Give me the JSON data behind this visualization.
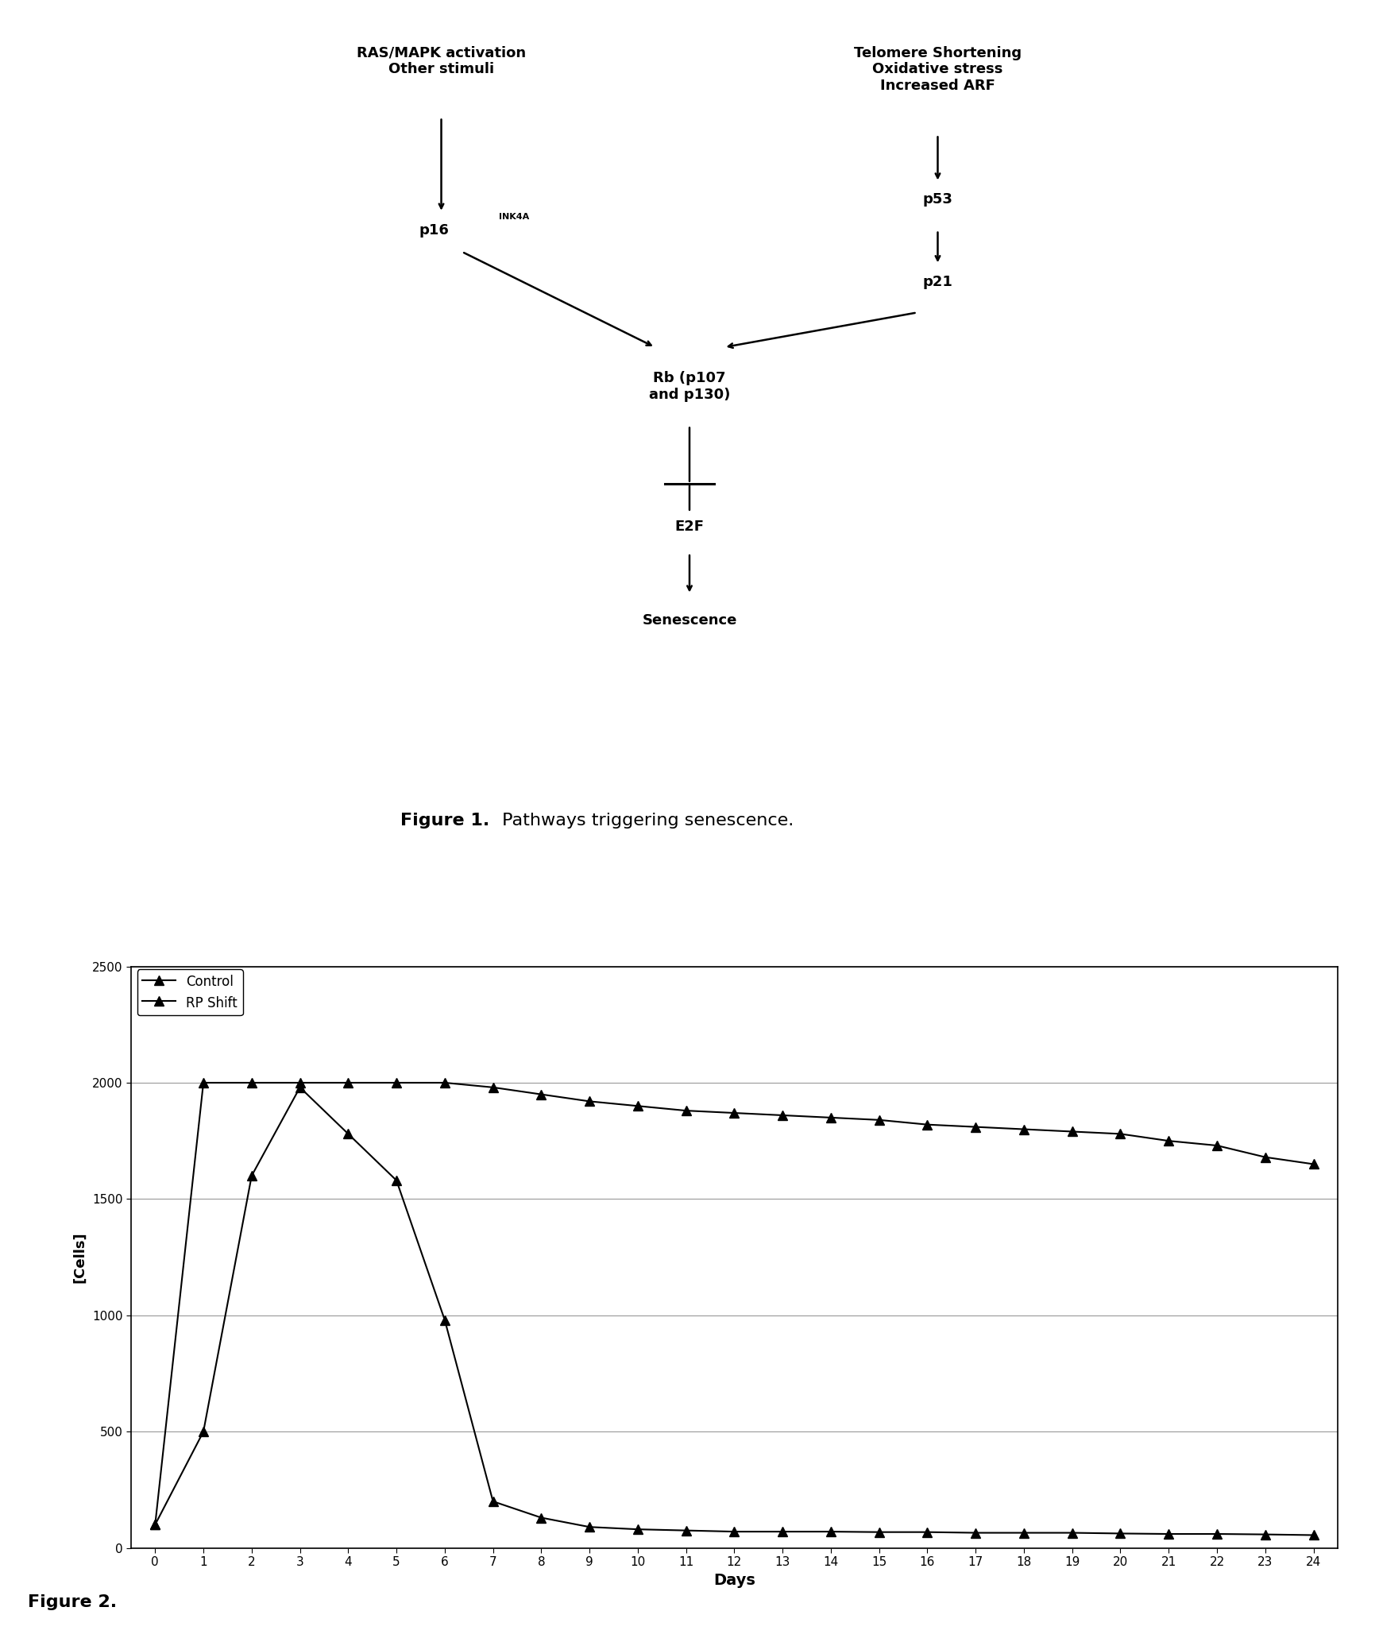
{
  "figure1_caption_bold": "Figure 1.",
  "figure1_caption_rest": " Pathways triggering senescence.",
  "figure2_caption": "Figure 2.",
  "diagram": {
    "left_top_text": "RAS/MAPK activation\nOther stimuli",
    "right_top_text": "Telomere Shortening\nOxidative stress\nIncreased ARF",
    "p53_text": "p53",
    "p21_text": "p21",
    "p16_text": "p16",
    "p16_superscript": "INK4A",
    "rb_text": "Rb (p107\nand p130)",
    "e2f_text": "E2F",
    "senescence_text": "Senescence"
  },
  "chart": {
    "control_x": [
      0,
      1,
      2,
      3,
      4,
      5,
      6,
      7,
      8,
      9,
      10,
      11,
      12,
      13,
      14,
      15,
      16,
      17,
      18,
      19,
      20,
      21,
      22,
      23,
      24
    ],
    "control_y": [
      100,
      2000,
      2000,
      2000,
      2000,
      2000,
      2000,
      1980,
      1950,
      1920,
      1900,
      1880,
      1870,
      1860,
      1850,
      1840,
      1820,
      1810,
      1800,
      1790,
      1780,
      1750,
      1730,
      1680,
      1650
    ],
    "rp_x": [
      0,
      1,
      2,
      3,
      4,
      5,
      6,
      7,
      8,
      9,
      10,
      11,
      12,
      13,
      14,
      15,
      16,
      17,
      18,
      19,
      20,
      21,
      22,
      23,
      24
    ],
    "rp_y": [
      100,
      500,
      1600,
      1980,
      1780,
      1580,
      980,
      200,
      130,
      90,
      80,
      75,
      70,
      70,
      70,
      68,
      68,
      65,
      65,
      65,
      62,
      60,
      60,
      58,
      55
    ],
    "ylim": [
      0,
      2500
    ],
    "yticks": [
      0,
      500,
      1000,
      1500,
      2000,
      2500
    ],
    "xticks": [
      0,
      1,
      2,
      3,
      4,
      5,
      6,
      7,
      8,
      9,
      10,
      11,
      12,
      13,
      14,
      15,
      16,
      17,
      18,
      19,
      20,
      21,
      22,
      23,
      24
    ],
    "xlabel": "Days",
    "ylabel": "[Cells]",
    "legend_control": "Control",
    "legend_rp": "RP Shift",
    "color": "#000000",
    "marker": "^",
    "markersize": 9,
    "linewidth": 1.5
  },
  "bg_color": "#ffffff",
  "text_color": "#000000"
}
